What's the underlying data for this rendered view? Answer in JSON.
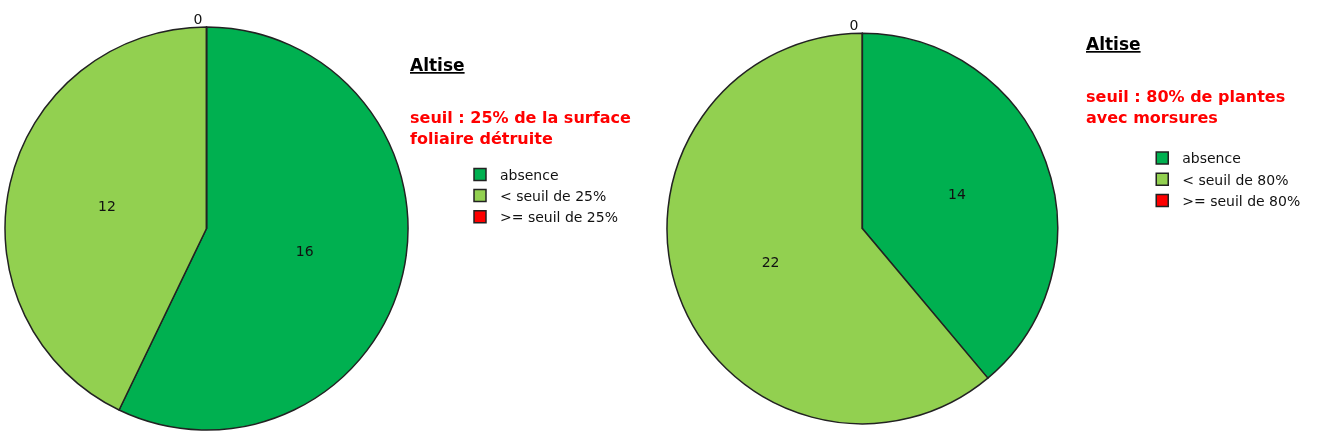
{
  "chart_data": [
    {
      "type": "pie",
      "title": "Altise",
      "subtitle": "seuil : 25% de la surface\nfoliaire détruite",
      "categories": [
        "absence",
        "< seuil de 25%",
        ">= seuil de 25%"
      ],
      "values": [
        16,
        12,
        0
      ],
      "value_labels": [
        "16",
        "12",
        "0"
      ],
      "colors": [
        "#00b050",
        "#92d050",
        "#ff0000"
      ],
      "legend": "right"
    },
    {
      "type": "pie",
      "title": "Altise",
      "subtitle": "seuil : 80% de plantes\navec morsures",
      "categories": [
        "absence",
        "< seuil de 80%",
        ">= seuil de 80%"
      ],
      "values": [
        14,
        22,
        0
      ],
      "value_labels": [
        "14",
        "22",
        "0"
      ],
      "colors": [
        "#00b050",
        "#92d050",
        "#ff0000"
      ],
      "legend": "right"
    }
  ]
}
